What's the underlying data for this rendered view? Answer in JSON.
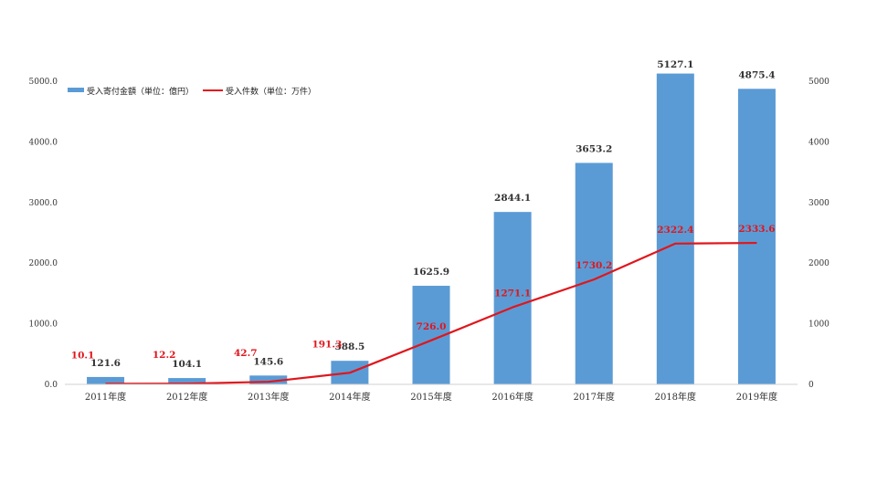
{
  "chart_data": {
    "type": "bar",
    "categories": [
      "2011年度",
      "2012年度",
      "2013年度",
      "2014年度",
      "2015年度",
      "2016年度",
      "2017年度",
      "2018年度",
      "2019年度"
    ],
    "series": [
      {
        "name": "受入寄付金額（単位：億円）",
        "type": "bar",
        "axis": "left",
        "values": [
          121.6,
          104.1,
          145.6,
          388.5,
          1625.9,
          2844.1,
          3653.2,
          5127.1,
          4875.4
        ],
        "value_labels": [
          "121.6",
          "104.1",
          "145.6",
          "388.5",
          "1625.9",
          "2844.1",
          "3653.2",
          "5127.1",
          "4875.4"
        ]
      },
      {
        "name": "受入件数（単位：万件）",
        "type": "line",
        "axis": "right",
        "values": [
          10.1,
          12.2,
          42.7,
          191.3,
          726.0,
          1271.1,
          1730.2,
          2322.4,
          2333.6
        ],
        "value_labels": [
          "10.1",
          "12.2",
          "42.7",
          "191.3",
          "726.0",
          "1271.1",
          "1730.2",
          "2322.4",
          "2333.6"
        ]
      }
    ],
    "y_left": {
      "ylim": [
        0,
        5000
      ],
      "ticks": [
        "0.0",
        "1000.0",
        "2000.0",
        "3000.0",
        "4000.0",
        "5000.0"
      ]
    },
    "y_right": {
      "ylim": [
        0,
        5000
      ],
      "ticks": [
        "0",
        "1000",
        "2000",
        "3000",
        "4000",
        "5000"
      ]
    },
    "grid": false,
    "legend": "top-left",
    "colors": {
      "bar": "#5b9bd5",
      "line": "#e0161c",
      "line_label": "#e0161c",
      "bar_label": "#333333"
    }
  }
}
